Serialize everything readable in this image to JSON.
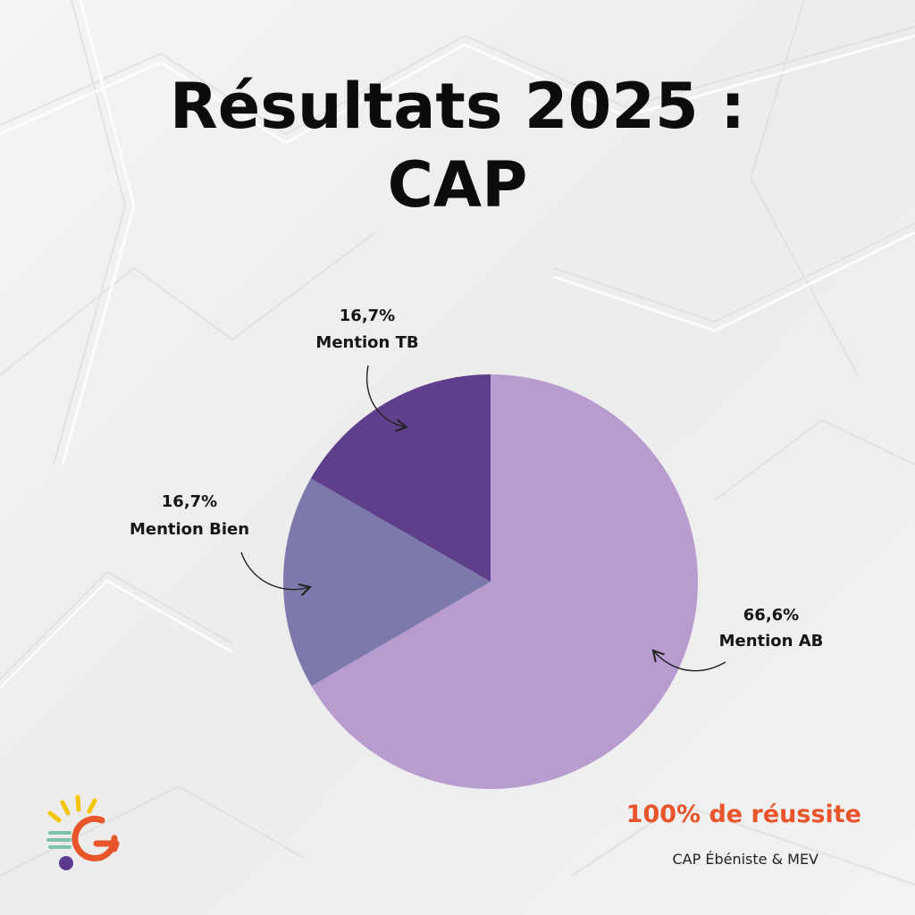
{
  "title": {
    "line1": "Résultats 2025 :",
    "line2": "CAP"
  },
  "chart_data": {
    "type": "pie",
    "slices": [
      {
        "value": 66.6,
        "value_label": "66,6%",
        "name": "Mention AB",
        "color": "#b89ccf"
      },
      {
        "value": 16.7,
        "value_label": "16,7%",
        "name": "Mention Bien",
        "color": "#7d7aab"
      },
      {
        "value": 16.7,
        "value_label": "16,7%",
        "name": "Mention TB",
        "color": "#5f3f8c"
      }
    ],
    "legend": "none"
  },
  "footer": {
    "highlight": "100% de réussite",
    "subtext": "CAP Ébéniste & MEV"
  },
  "logo": {
    "icon": "sun-g-logo-icon",
    "colors": {
      "rays": "#f5c400",
      "letter": "#e8552a",
      "dot": "#5b3a8f",
      "lines": "#7cc3a9"
    }
  }
}
